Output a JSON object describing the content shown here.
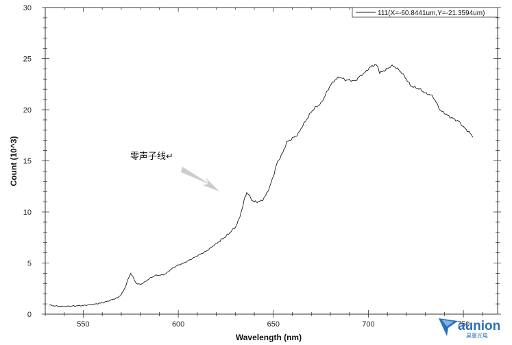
{
  "chart_data": {
    "type": "line",
    "xlabel": "Wavelength (nm)",
    "ylabel": "Count (10^3)",
    "xlim": [
      530,
      768
    ],
    "ylim": [
      0,
      30
    ],
    "x_ticks": [
      550,
      600,
      650,
      700,
      750
    ],
    "y_ticks": [
      0,
      5,
      10,
      15,
      20,
      25,
      30
    ],
    "grid": false,
    "legend_position": "top-right",
    "series": [
      {
        "name": "111(X=-60.8441um,Y=-21.3594um)",
        "color": "#1a1a1a",
        "x": [
          532,
          535,
          540,
          545,
          550,
          555,
          560,
          565,
          568,
          570,
          572,
          574,
          575,
          576,
          577,
          578,
          580,
          582,
          585,
          588,
          590,
          593,
          595,
          597,
          599,
          600,
          603,
          606,
          610,
          615,
          620,
          625,
          630,
          632,
          634,
          635,
          636,
          637,
          638,
          639,
          640,
          642,
          644,
          646,
          648,
          650,
          652,
          655,
          657,
          660,
          663,
          665,
          667,
          670,
          672,
          675,
          677,
          680,
          683,
          685,
          688,
          690,
          693,
          695,
          698,
          700,
          702,
          704,
          705,
          706,
          708,
          710,
          712,
          714,
          716,
          718,
          720,
          722,
          724,
          726,
          728,
          730,
          732,
          734,
          736,
          738,
          740,
          742,
          745,
          748,
          750,
          752,
          754,
          755
        ],
        "values": [
          0.9,
          0.8,
          0.75,
          0.8,
          0.85,
          0.95,
          1.1,
          1.4,
          1.6,
          1.9,
          2.6,
          3.6,
          4.0,
          3.7,
          3.3,
          3.0,
          2.9,
          3.1,
          3.5,
          3.8,
          3.8,
          3.9,
          4.2,
          4.5,
          4.7,
          4.8,
          5.0,
          5.3,
          5.7,
          6.2,
          6.9,
          7.6,
          8.5,
          9.3,
          10.6,
          11.4,
          11.9,
          11.7,
          11.4,
          11.1,
          11.0,
          11.0,
          11.1,
          11.6,
          12.4,
          13.5,
          14.8,
          15.8,
          16.8,
          17.2,
          17.6,
          18.3,
          18.9,
          19.8,
          20.2,
          20.6,
          21.3,
          22.4,
          23.0,
          23.2,
          22.9,
          22.9,
          22.8,
          23.2,
          23.6,
          24.0,
          24.3,
          24.4,
          24.2,
          23.6,
          23.8,
          24.0,
          24.3,
          24.2,
          23.9,
          23.5,
          23.0,
          22.4,
          22.2,
          22.1,
          21.9,
          21.6,
          21.5,
          21.3,
          20.6,
          19.9,
          19.7,
          19.4,
          19.1,
          18.8,
          18.3,
          18.0,
          17.6,
          17.3
        ]
      }
    ],
    "annotations": [
      {
        "text": "零声子线↵",
        "points_to_x": 637,
        "points_to_y": 11.9
      }
    ]
  },
  "logo": {
    "brand": "aunion",
    "subtitle": "昊量光电",
    "accent": "#2b6fb6"
  },
  "arrow_color": "#cccccc"
}
